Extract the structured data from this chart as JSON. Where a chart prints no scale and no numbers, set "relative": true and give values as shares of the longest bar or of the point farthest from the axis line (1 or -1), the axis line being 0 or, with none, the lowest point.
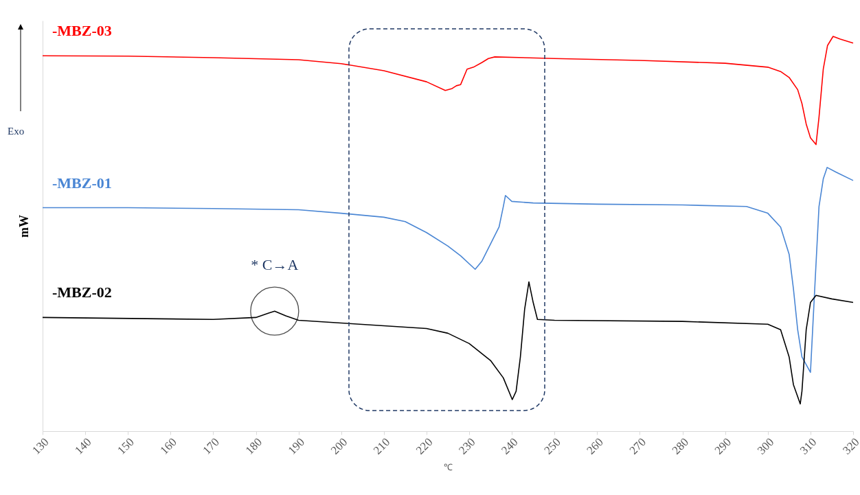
{
  "chart_data": {
    "type": "line",
    "xlabel": "℃",
    "ylabel": "mW",
    "relative": true,
    "legend": false,
    "marker": "none",
    "line_style": "solid",
    "grid": false,
    "xlim": [
      130,
      320
    ],
    "xticks": [
      130,
      140,
      150,
      160,
      170,
      180,
      190,
      200,
      210,
      220,
      230,
      240,
      250,
      260,
      270,
      280,
      290,
      300,
      310,
      320
    ],
    "series": [
      {
        "name": "-MBZ-03",
        "color": "#ff0000",
        "x": [
          130,
          150,
          170,
          190,
          200,
          210,
          220,
          224.4,
          226,
          227,
          228,
          229.5,
          231,
          233,
          234.5,
          236,
          250,
          270,
          290,
          300,
          303,
          305,
          307,
          308,
          309,
          310,
          311.3,
          312,
          313,
          314,
          315.3,
          317,
          320
        ],
        "values": [
          0.951,
          0.95,
          0.946,
          0.941,
          0.931,
          0.913,
          0.885,
          0.863,
          0.868,
          0.875,
          0.878,
          0.917,
          0.922,
          0.934,
          0.944,
          0.948,
          0.944,
          0.939,
          0.932,
          0.922,
          0.911,
          0.896,
          0.865,
          0.83,
          0.778,
          0.743,
          0.726,
          0.795,
          0.917,
          0.977,
          1.0,
          0.993,
          0.983
        ]
      },
      {
        "name": "-MBZ-01",
        "color": "#4a86d4",
        "x": [
          130,
          150,
          170,
          190,
          200,
          210,
          215,
          220,
          225,
          228,
          231.4,
          233,
          235,
          237,
          238,
          238.5,
          240,
          245,
          260,
          280,
          295,
          300,
          303,
          305,
          306,
          307,
          308,
          310,
          311,
          312,
          313,
          313.9,
          316,
          320
        ],
        "values": [
          0.566,
          0.566,
          0.564,
          0.561,
          0.552,
          0.542,
          0.531,
          0.503,
          0.469,
          0.444,
          0.41,
          0.431,
          0.474,
          0.517,
          0.569,
          0.597,
          0.582,
          0.578,
          0.575,
          0.573,
          0.569,
          0.552,
          0.517,
          0.448,
          0.361,
          0.257,
          0.188,
          0.149,
          0.361,
          0.569,
          0.639,
          0.668,
          0.656,
          0.635
        ]
      },
      {
        "name": "-MBZ-02",
        "color": "#000000",
        "x": [
          130,
          170,
          180,
          183,
          184.4,
          187,
          190,
          200,
          220,
          225,
          230,
          235,
          238,
          240.1,
          241,
          242,
          243,
          244,
          245,
          246,
          250,
          280,
          300,
          303,
          305,
          306,
          307.6,
          308,
          309,
          310,
          311.3,
          315,
          320
        ],
        "values": [
          0.288,
          0.283,
          0.288,
          0.299,
          0.304,
          0.292,
          0.281,
          0.274,
          0.26,
          0.248,
          0.222,
          0.179,
          0.135,
          0.08,
          0.101,
          0.188,
          0.309,
          0.378,
          0.326,
          0.283,
          0.281,
          0.278,
          0.271,
          0.257,
          0.188,
          0.118,
          0.069,
          0.101,
          0.257,
          0.326,
          0.344,
          0.335,
          0.326
        ]
      }
    ],
    "annotations": [
      {
        "text": "* C→A",
        "x": 184.4,
        "y": 0.304
      },
      "Exo"
    ]
  }
}
